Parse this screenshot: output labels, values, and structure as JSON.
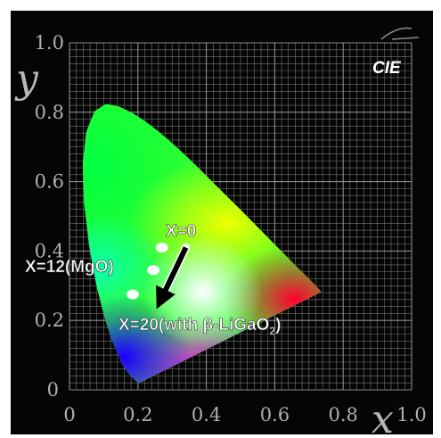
{
  "chart_data": {
    "type": "scatter",
    "title": "",
    "badge": "CIE",
    "xlabel": "x",
    "ylabel": "y",
    "xlim": [
      0,
      1.0
    ],
    "ylim": [
      0,
      1.0
    ],
    "x_ticks": [
      "0",
      "0.2",
      "0.4",
      "0.6",
      "0.8",
      "1.0"
    ],
    "y_ticks": [
      "0",
      "0.2",
      "0.4",
      "0.6",
      "0.8",
      "1.0"
    ],
    "grid": true,
    "points": [
      {
        "label": "X=0",
        "x": 0.27,
        "y": 0.41
      },
      {
        "label": "X=12(MgO)",
        "x": 0.245,
        "y": 0.345
      },
      {
        "label": "X=20(with β-LiGaO",
        "label_sub": "2",
        "label_tail": ")",
        "x": 0.185,
        "y": 0.275
      }
    ],
    "arrow": {
      "from": [
        0.34,
        0.41
      ],
      "to": [
        0.265,
        0.255
      ]
    },
    "colors": {
      "background": "#000000",
      "grid": "#9a9a9a",
      "points": "#ffffff",
      "arrow": "#000000"
    }
  }
}
